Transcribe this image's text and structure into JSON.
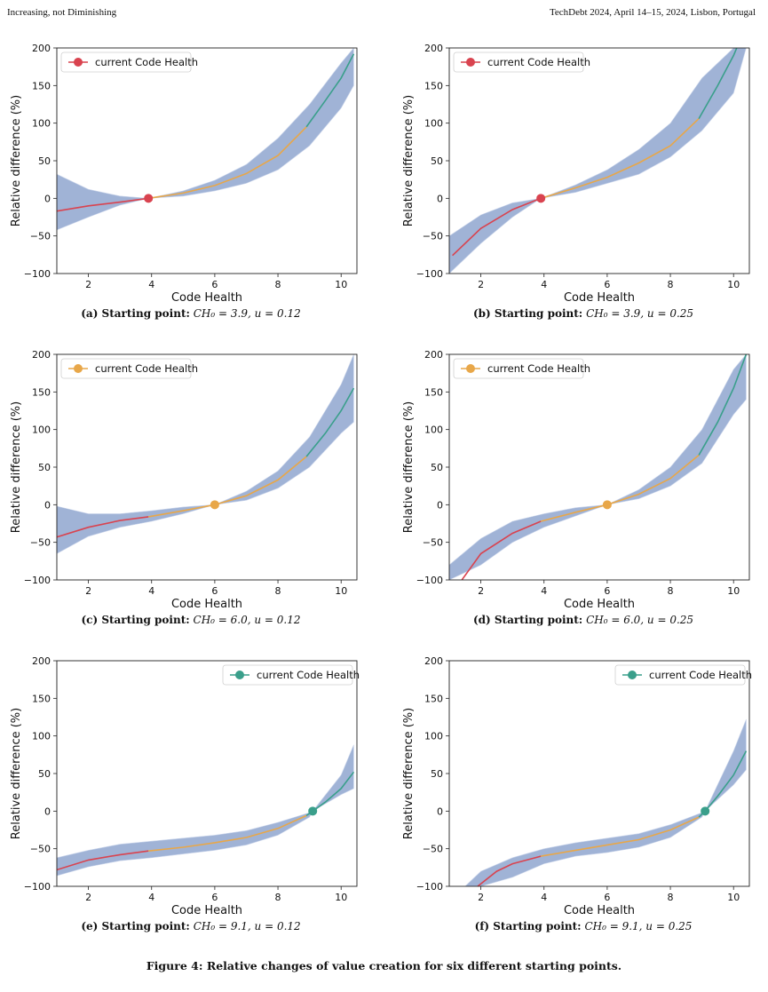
{
  "header": {
    "left": "Increasing, not Diminishing",
    "right": "TechDebt 2024, April 14–15, 2024, Lisbon, Portugal"
  },
  "figure_caption": "Figure 4: Relative changes of value creation for six different starting points.",
  "colors": {
    "band": "#8fa6cf",
    "red": "#d9434f",
    "orange": "#e8a749",
    "teal": "#3a9f8b"
  },
  "chart_data": [
    {
      "id": "a",
      "type": "line",
      "caption_label": "(a) Starting point:",
      "caption_math": "CH₀ = 3.9, u = 0.12",
      "xlabel": "Code Health",
      "ylabel": "Relative difference (%)",
      "xlim": [
        1,
        10.5
      ],
      "ylim": [
        -100,
        200
      ],
      "xticks": [
        2,
        4,
        6,
        8,
        10
      ],
      "yticks": [
        -100,
        -50,
        0,
        50,
        100,
        150,
        200
      ],
      "legend": {
        "label": "current Code Health",
        "loc": "upper left",
        "color": "red"
      },
      "current_point": {
        "x": 3.9,
        "y": 0
      },
      "segments": [
        {
          "color": "red",
          "x": [
            1,
            2,
            3,
            3.9
          ],
          "y": [
            -17,
            -10,
            -5,
            0
          ]
        },
        {
          "color": "orange",
          "x": [
            3.9,
            5,
            6,
            7,
            8,
            8.9
          ],
          "y": [
            0,
            7,
            17,
            33,
            57,
            95
          ]
        },
        {
          "color": "teal",
          "x": [
            8.9,
            9.5,
            10,
            10.4
          ],
          "y": [
            95,
            130,
            160,
            192
          ]
        }
      ],
      "band": {
        "x": [
          1,
          2,
          3,
          3.9,
          5,
          6,
          7,
          8,
          9,
          10,
          10.4
        ],
        "upper": [
          32,
          12,
          3,
          0,
          10,
          24,
          45,
          80,
          125,
          180,
          200
        ],
        "lower": [
          -42,
          -25,
          -9,
          0,
          3,
          10,
          20,
          38,
          70,
          120,
          150
        ]
      }
    },
    {
      "id": "b",
      "type": "line",
      "caption_label": "(b) Starting point:",
      "caption_math": "CH₀ = 3.9, u = 0.25",
      "xlabel": "Code Health",
      "ylabel": "Relative difference (%)",
      "xlim": [
        1,
        10.5
      ],
      "ylim": [
        -100,
        200
      ],
      "xticks": [
        2,
        4,
        6,
        8,
        10
      ],
      "yticks": [
        -100,
        -50,
        0,
        50,
        100,
        150,
        200
      ],
      "legend": {
        "label": "current Code Health",
        "loc": "upper left",
        "color": "red"
      },
      "current_point": {
        "x": 3.9,
        "y": 0
      },
      "segments": [
        {
          "color": "red",
          "x": [
            1.1,
            2,
            3,
            3.9
          ],
          "y": [
            -76,
            -40,
            -15,
            0
          ]
        },
        {
          "color": "orange",
          "x": [
            3.9,
            5,
            6,
            7,
            8,
            8.9
          ],
          "y": [
            0,
            14,
            28,
            47,
            70,
            106
          ]
        },
        {
          "color": "teal",
          "x": [
            8.9,
            9.5,
            10,
            10.1
          ],
          "y": [
            106,
            150,
            190,
            200
          ]
        }
      ],
      "band": {
        "x": [
          1,
          2,
          3,
          3.9,
          5,
          6,
          7,
          8,
          9,
          10,
          10.4
        ],
        "upper": [
          -50,
          -22,
          -6,
          0,
          18,
          38,
          65,
          100,
          160,
          200,
          200
        ],
        "lower": [
          -100,
          -60,
          -25,
          0,
          8,
          20,
          32,
          55,
          90,
          140,
          200
        ]
      }
    },
    {
      "id": "c",
      "type": "line",
      "caption_label": "(c) Starting point:",
      "caption_math": "CH₀ = 6.0, u = 0.12",
      "xlabel": "Code Health",
      "ylabel": "Relative difference (%)",
      "xlim": [
        1,
        10.5
      ],
      "ylim": [
        -100,
        200
      ],
      "xticks": [
        2,
        4,
        6,
        8,
        10
      ],
      "yticks": [
        -100,
        -50,
        0,
        50,
        100,
        150,
        200
      ],
      "legend": {
        "label": "current Code Health",
        "loc": "upper left",
        "color": "orange"
      },
      "current_point": {
        "x": 6.0,
        "y": 0
      },
      "segments": [
        {
          "color": "red",
          "x": [
            1,
            2,
            3,
            3.9
          ],
          "y": [
            -43,
            -30,
            -21,
            -16
          ]
        },
        {
          "color": "orange",
          "x": [
            3.9,
            5,
            6,
            7,
            8,
            8.9
          ],
          "y": [
            -16,
            -8,
            0,
            12,
            33,
            64
          ]
        },
        {
          "color": "teal",
          "x": [
            8.9,
            9.5,
            10,
            10.4
          ],
          "y": [
            64,
            95,
            125,
            155
          ]
        }
      ],
      "band": {
        "x": [
          1,
          2,
          3,
          4,
          5,
          6,
          7,
          8,
          9,
          10,
          10.4
        ],
        "upper": [
          -2,
          -12,
          -12,
          -8,
          -3,
          0,
          18,
          45,
          90,
          160,
          200
        ],
        "lower": [
          -65,
          -42,
          -30,
          -22,
          -12,
          0,
          6,
          22,
          50,
          95,
          110
        ]
      }
    },
    {
      "id": "d",
      "type": "line",
      "caption_label": "(d) Starting point:",
      "caption_math": "CH₀ = 6.0, u = 0.25",
      "xlabel": "Code Health",
      "ylabel": "Relative difference (%)",
      "xlim": [
        1,
        10.5
      ],
      "ylim": [
        -100,
        200
      ],
      "xticks": [
        2,
        4,
        6,
        8,
        10
      ],
      "yticks": [
        -100,
        -50,
        0,
        50,
        100,
        150,
        200
      ],
      "legend": {
        "label": "current Code Health",
        "loc": "upper left",
        "color": "orange"
      },
      "current_point": {
        "x": 6.0,
        "y": 0
      },
      "segments": [
        {
          "color": "red",
          "x": [
            1.4,
            2,
            3,
            3.9
          ],
          "y": [
            -100,
            -65,
            -38,
            -22
          ]
        },
        {
          "color": "orange",
          "x": [
            3.9,
            5,
            6,
            7,
            8,
            8.9
          ],
          "y": [
            -22,
            -10,
            0,
            14,
            35,
            66
          ]
        },
        {
          "color": "teal",
          "x": [
            8.9,
            9.5,
            10,
            10.4
          ],
          "y": [
            66,
            110,
            155,
            200
          ]
        }
      ],
      "band": {
        "x": [
          1,
          2,
          3,
          4,
          5,
          6,
          7,
          8,
          9,
          10,
          10.4
        ],
        "upper": [
          -80,
          -45,
          -22,
          -12,
          -4,
          0,
          20,
          50,
          100,
          180,
          200
        ],
        "lower": [
          -100,
          -80,
          -50,
          -30,
          -15,
          0,
          8,
          25,
          55,
          120,
          140
        ]
      }
    },
    {
      "id": "e",
      "type": "line",
      "caption_label": "(e) Starting point:",
      "caption_math": "CH₀ = 9.1, u = 0.12",
      "xlabel": "Code Health",
      "ylabel": "Relative difference (%)",
      "xlim": [
        1,
        10.5
      ],
      "ylim": [
        -100,
        200
      ],
      "xticks": [
        2,
        4,
        6,
        8,
        10
      ],
      "yticks": [
        -100,
        -50,
        0,
        50,
        100,
        150,
        200
      ],
      "legend": {
        "label": "current Code Health",
        "loc": "upper right",
        "color": "teal"
      },
      "current_point": {
        "x": 9.1,
        "y": 0
      },
      "segments": [
        {
          "color": "red",
          "x": [
            1,
            2,
            3,
            3.9
          ],
          "y": [
            -78,
            -65,
            -58,
            -53
          ]
        },
        {
          "color": "orange",
          "x": [
            3.9,
            5,
            6,
            7,
            8,
            8.9
          ],
          "y": [
            -53,
            -48,
            -42,
            -35,
            -23,
            -6
          ]
        },
        {
          "color": "teal",
          "x": [
            8.9,
            9.1,
            9.5,
            10,
            10.4
          ],
          "y": [
            -6,
            0,
            12,
            30,
            52
          ]
        }
      ],
      "band": {
        "x": [
          1,
          2,
          3,
          4,
          5,
          6,
          7,
          8,
          9,
          9.1,
          10,
          10.4
        ],
        "upper": [
          -62,
          -52,
          -44,
          -40,
          -36,
          -32,
          -26,
          -15,
          -2,
          0,
          48,
          88
        ],
        "lower": [
          -86,
          -74,
          -66,
          -62,
          -57,
          -52,
          -45,
          -32,
          -8,
          0,
          22,
          30
        ]
      }
    },
    {
      "id": "f",
      "type": "line",
      "caption_label": "(f) Starting point:",
      "caption_math": "CH₀ = 9.1, u = 0.25",
      "xlabel": "Code Health",
      "ylabel": "Relative difference (%)",
      "xlim": [
        1,
        10.5
      ],
      "ylim": [
        -100,
        200
      ],
      "xticks": [
        2,
        4,
        6,
        8,
        10
      ],
      "yticks": [
        -100,
        -50,
        0,
        50,
        100,
        150,
        200
      ],
      "legend": {
        "label": "current Code Health",
        "loc": "upper right",
        "color": "teal"
      },
      "current_point": {
        "x": 9.1,
        "y": 0
      },
      "segments": [
        {
          "color": "red",
          "x": [
            1.9,
            2.5,
            3,
            3.9
          ],
          "y": [
            -100,
            -80,
            -70,
            -60
          ]
        },
        {
          "color": "orange",
          "x": [
            3.9,
            5,
            6,
            7,
            8,
            8.9
          ],
          "y": [
            -60,
            -52,
            -45,
            -38,
            -25,
            -8
          ]
        },
        {
          "color": "teal",
          "x": [
            8.9,
            9.1,
            9.5,
            10,
            10.4
          ],
          "y": [
            -8,
            0,
            20,
            48,
            80
          ]
        }
      ],
      "band": {
        "x": [
          1.5,
          2,
          3,
          4,
          5,
          6,
          7,
          8,
          9,
          9.1,
          10,
          10.4
        ],
        "upper": [
          -100,
          -80,
          -62,
          -50,
          -42,
          -36,
          -30,
          -18,
          -2,
          0,
          80,
          122
        ],
        "lower": [
          -100,
          -100,
          -88,
          -70,
          -60,
          -55,
          -48,
          -35,
          -8,
          0,
          35,
          55
        ]
      }
    }
  ]
}
